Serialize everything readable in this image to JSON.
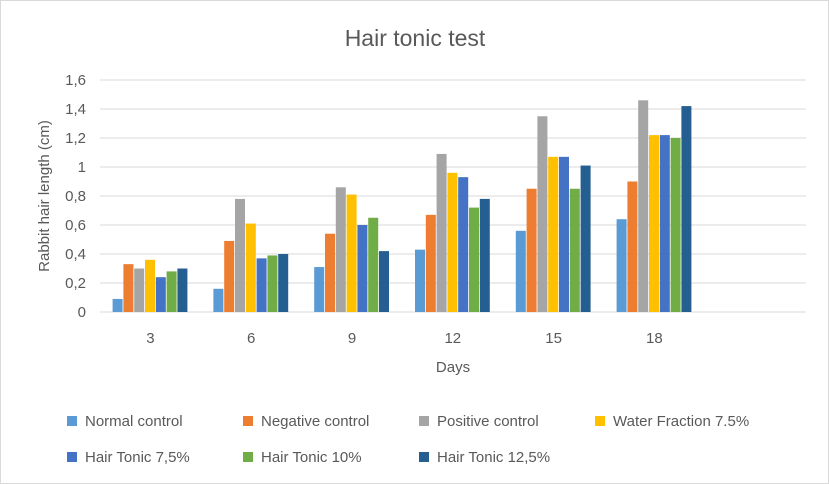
{
  "chart_data": {
    "type": "bar",
    "title": "Hair tonic test",
    "xlabel": "Days",
    "ylabel": "Rabbit hair length (cm)",
    "ylim": [
      0,
      1.6
    ],
    "yticks": [
      "0",
      "0,2",
      "0,4",
      "0,6",
      "0,8",
      "1",
      "1,2",
      "1,4",
      "1,6"
    ],
    "grid": true,
    "legend_position": "bottom",
    "categories": [
      "3",
      "6",
      "9",
      "12",
      "15",
      "18"
    ],
    "series": [
      {
        "name": "Normal control",
        "color": "#5B9BD5",
        "values": [
          0.09,
          0.16,
          0.31,
          0.43,
          0.56,
          0.64
        ]
      },
      {
        "name": "Negative control",
        "color": "#ED7D31",
        "values": [
          0.33,
          0.49,
          0.54,
          0.67,
          0.85,
          0.9
        ]
      },
      {
        "name": "Positive control",
        "color": "#A5A5A5",
        "values": [
          0.3,
          0.78,
          0.86,
          1.09,
          1.35,
          1.46
        ]
      },
      {
        "name": "Water Fraction 7.5%",
        "color": "#FFC000",
        "values": [
          0.36,
          0.61,
          0.81,
          0.96,
          1.07,
          1.22
        ]
      },
      {
        "name": "Hair Tonic 7,5%",
        "color": "#4472C4",
        "values": [
          0.24,
          0.37,
          0.6,
          0.93,
          1.07,
          1.22
        ]
      },
      {
        "name": "Hair Tonic 10%",
        "color": "#70AD47",
        "values": [
          0.28,
          0.39,
          0.65,
          0.72,
          0.85,
          1.2
        ]
      },
      {
        "name": "Hair Tonic 12,5%",
        "color": "#255E91",
        "values": [
          0.3,
          0.4,
          0.42,
          0.78,
          1.01,
          1.42
        ]
      }
    ]
  }
}
